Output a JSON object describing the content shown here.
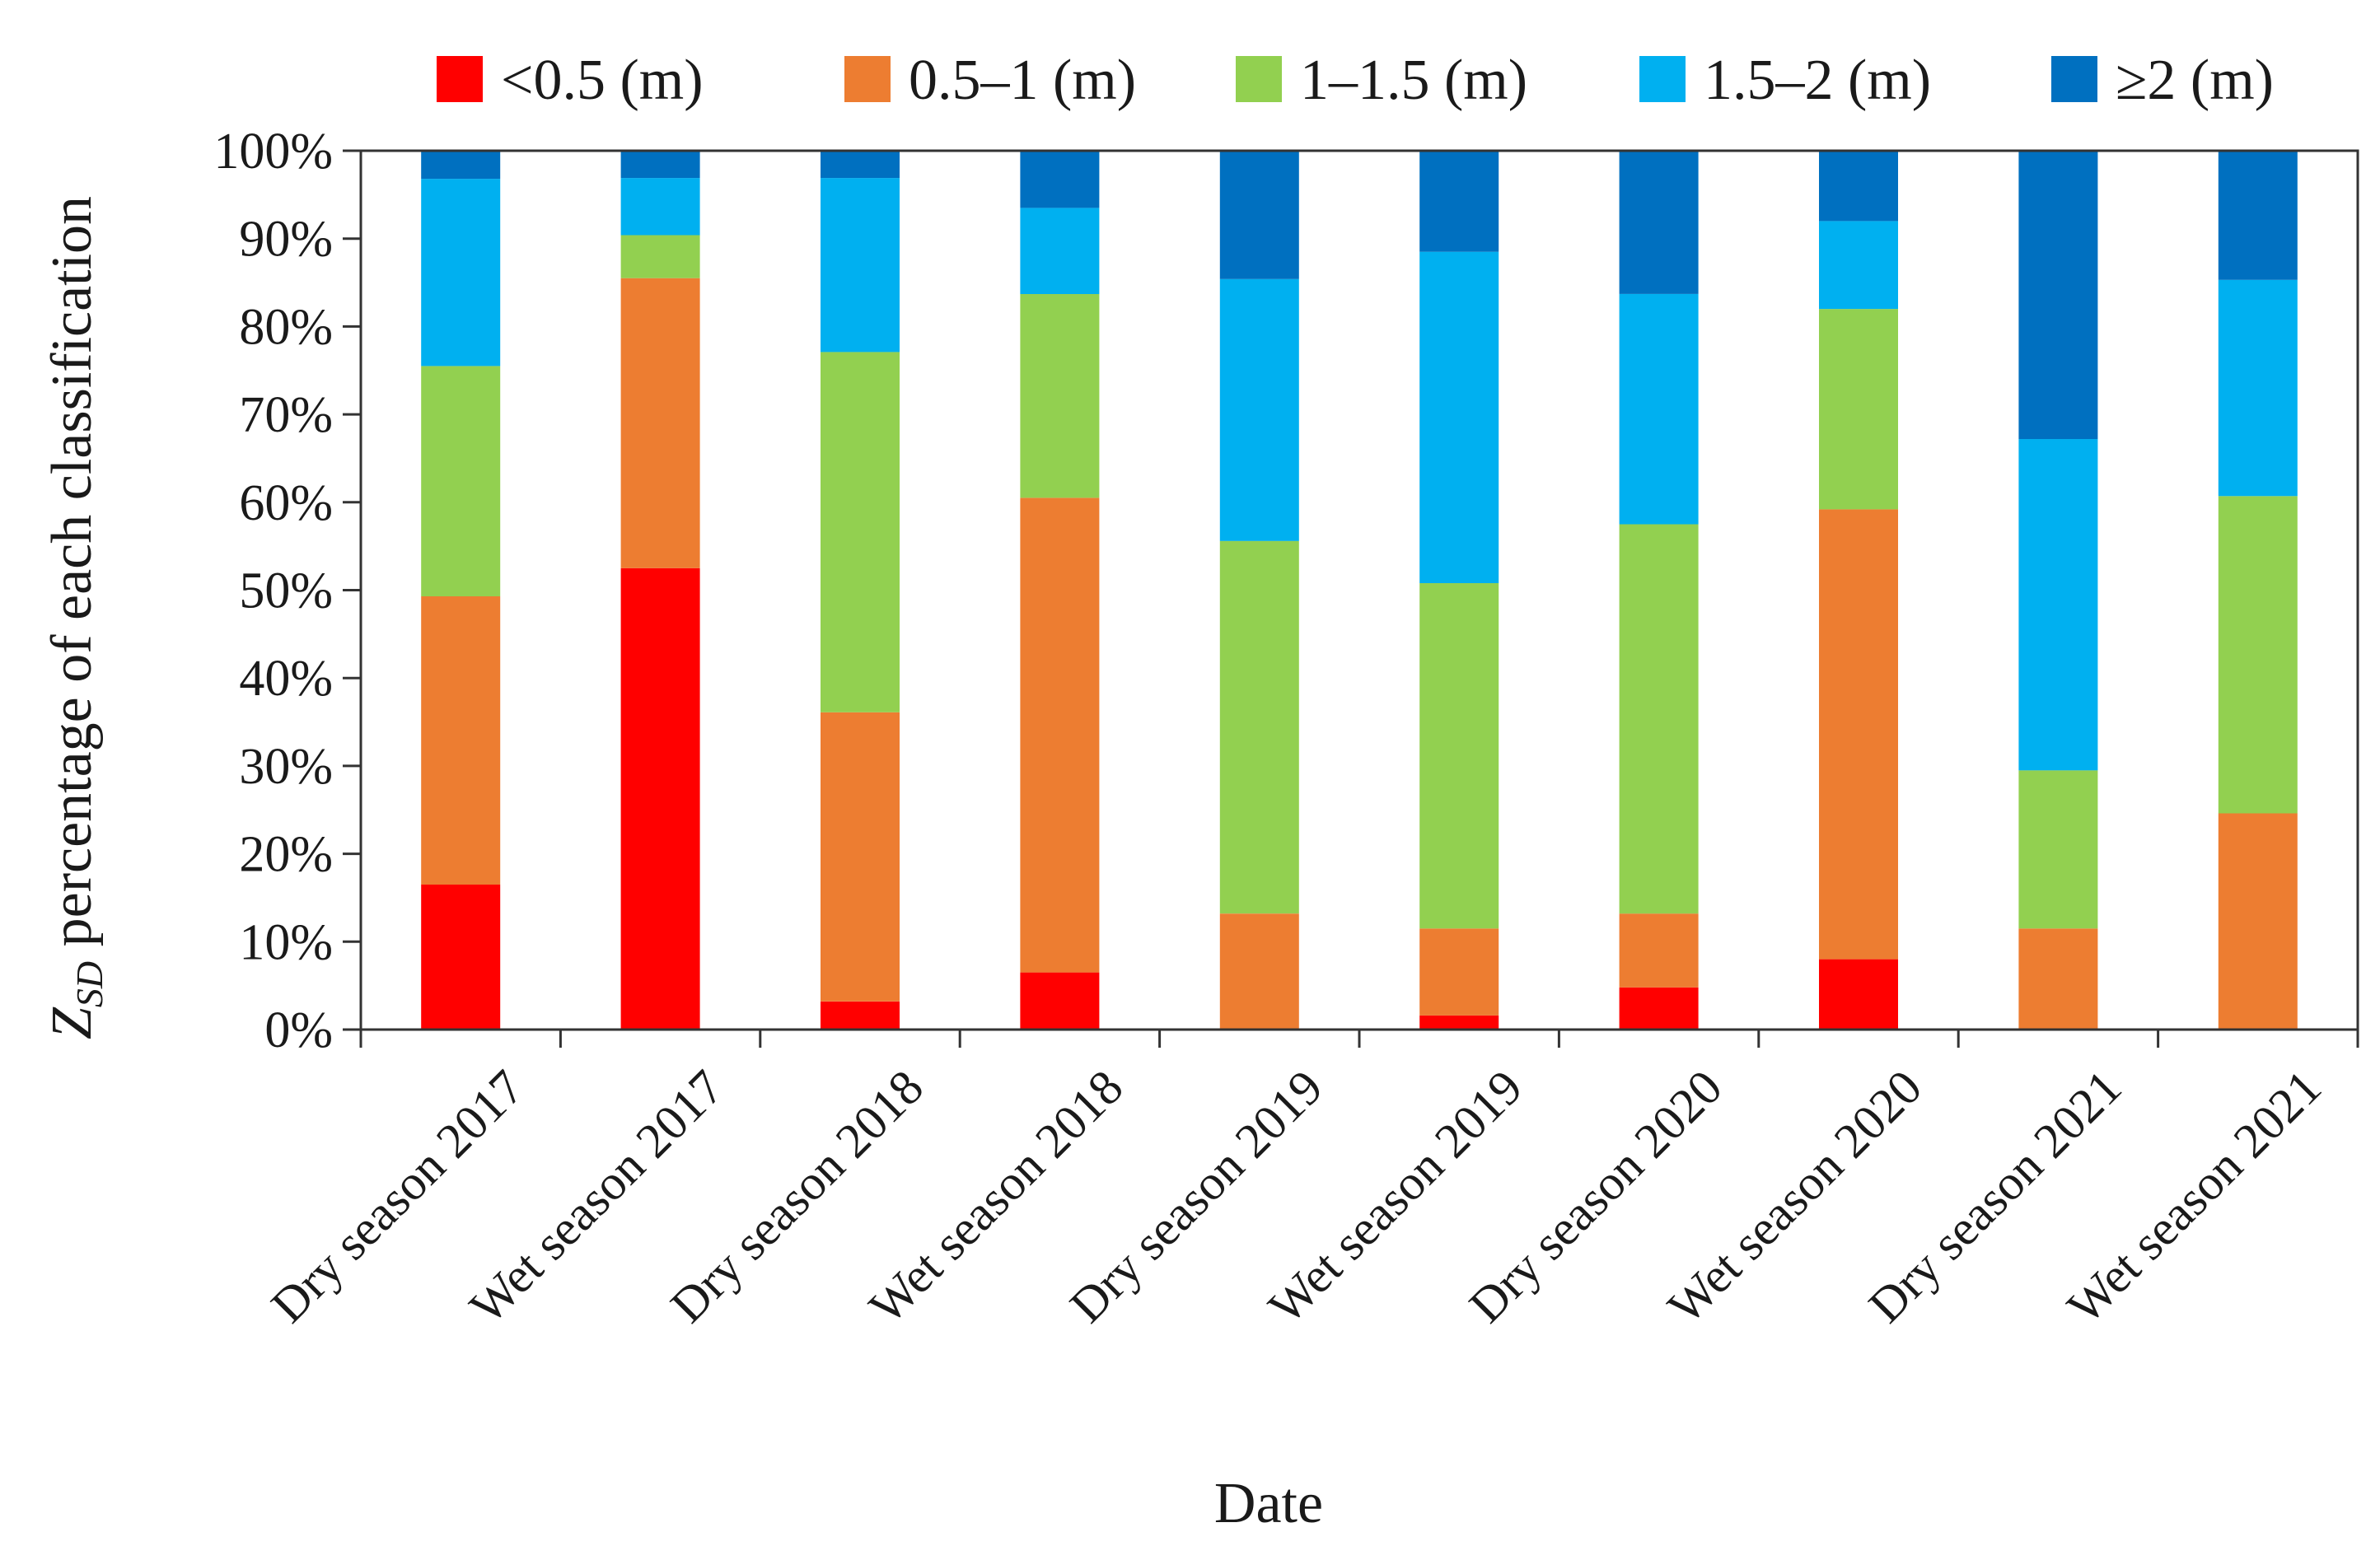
{
  "chart_data": {
    "type": "bar",
    "stacked": true,
    "percent": true,
    "title": "",
    "xlabel": "Date",
    "ylabel_main": "Z",
    "ylabel_sub": "SD",
    "ylabel_rest": " percentage of each classification",
    "ylim": [
      0,
      100
    ],
    "ytick_step": 10,
    "yticks": [
      "0%",
      "10%",
      "20%",
      "30%",
      "40%",
      "50%",
      "60%",
      "70%",
      "80%",
      "90%",
      "100%"
    ],
    "legend_position": "top",
    "categories": [
      "Dry season 2017",
      "Wet season 2017",
      "Dry season 2018",
      "Wet season 2018",
      "Dry season 2019",
      "Wet season 2019",
      "Dry season 2020",
      "Wet season 2020",
      "Dry season 2021",
      "Wet season 2021"
    ],
    "series": [
      {
        "name": "<0.5 (m)",
        "color": "#ff0000",
        "values": [
          16.5,
          52.5,
          3.2,
          6.5,
          0,
          1.6,
          4.8,
          8.0,
          0,
          0
        ]
      },
      {
        "name": "0.5–1 (m)",
        "color": "#ed7d31",
        "values": [
          32.8,
          33.0,
          32.9,
          54.0,
          13.2,
          9.9,
          8.4,
          51.2,
          11.5,
          24.6
        ]
      },
      {
        "name": "1–1.5 (m)",
        "color": "#92d050",
        "values": [
          26.2,
          4.9,
          41.0,
          23.2,
          42.4,
          39.3,
          44.3,
          22.8,
          18.0,
          36.1
        ]
      },
      {
        "name": "1.5–2 (m)",
        "color": "#00b0f0",
        "values": [
          21.3,
          6.5,
          19.8,
          9.8,
          29.8,
          37.7,
          26.2,
          10.0,
          37.7,
          24.6
        ]
      },
      {
        "name": "≥2 (m)",
        "color": "#0070c0",
        "values": [
          3.2,
          3.1,
          3.1,
          6.5,
          14.6,
          11.5,
          16.3,
          8.0,
          32.8,
          14.7
        ]
      }
    ]
  }
}
